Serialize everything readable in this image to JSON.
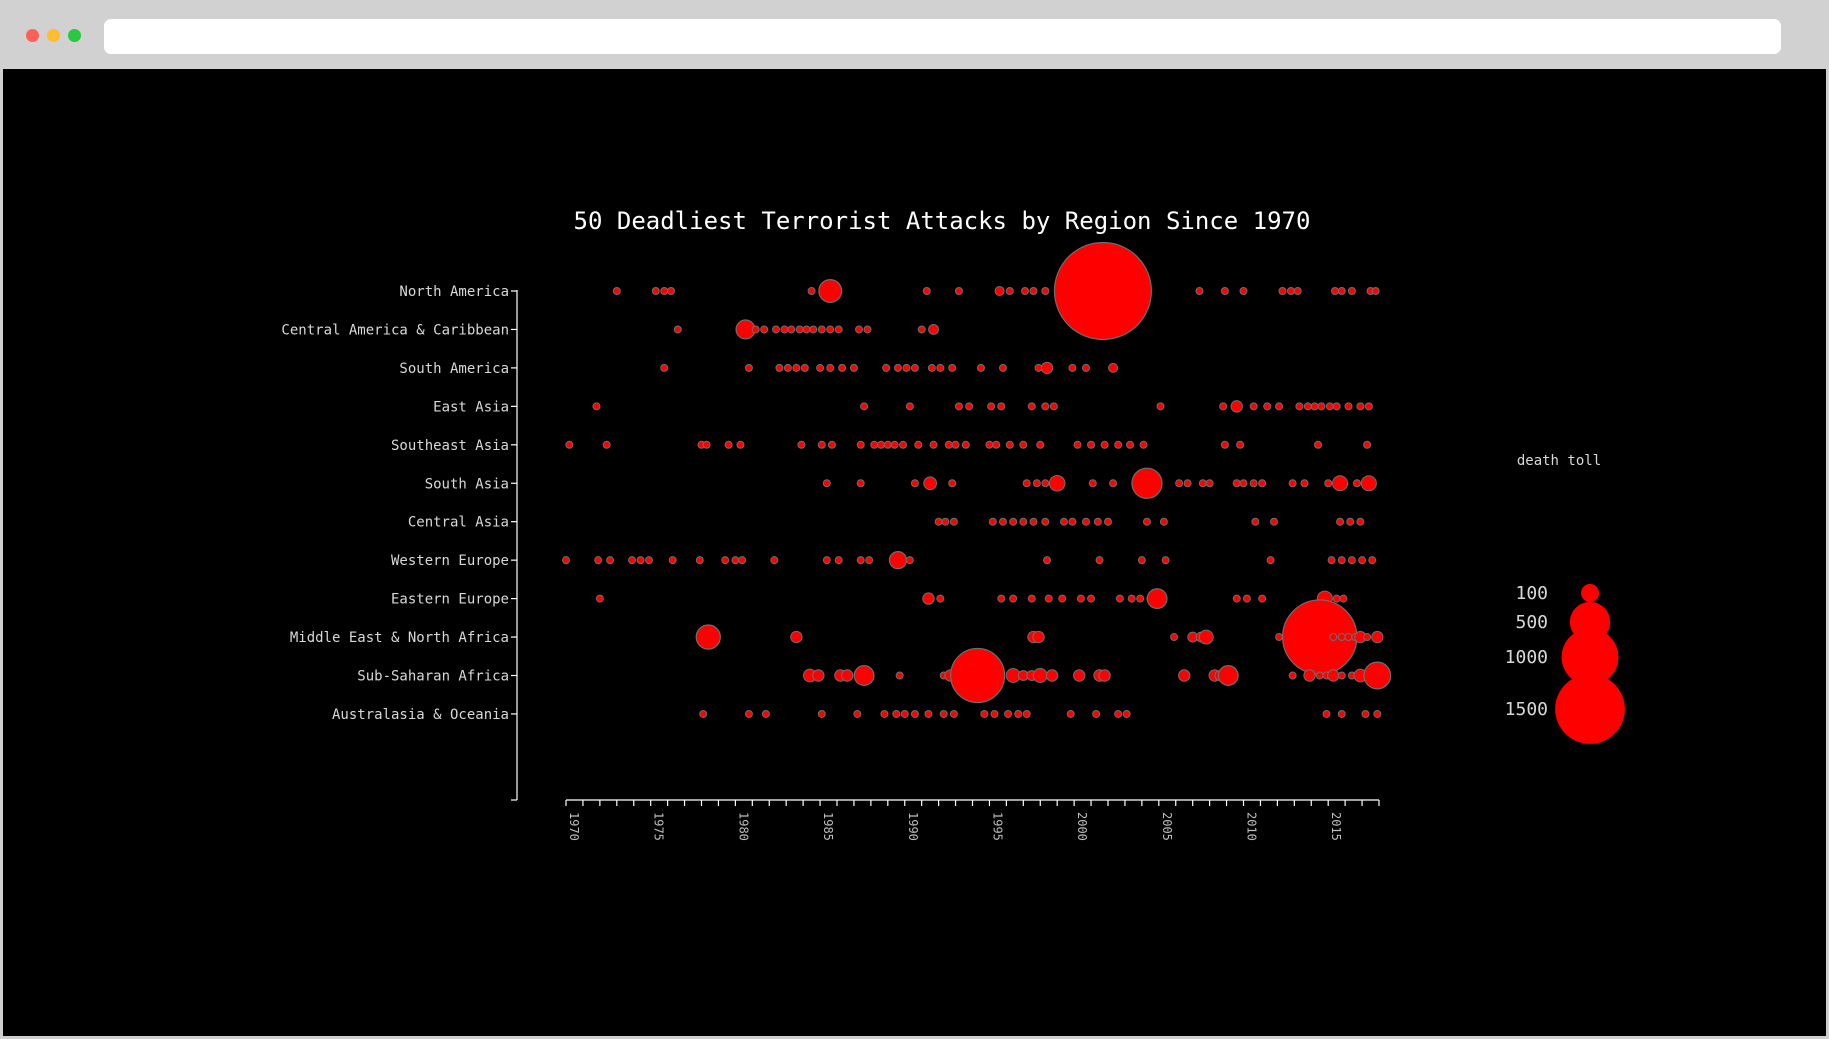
{
  "colors": {
    "background": "#000000",
    "bubble_fill": "#ff0000",
    "bubble_stroke": "#6e6e6e",
    "axis": "#ffffff"
  },
  "chart_data": {
    "type": "scatter",
    "title": "50 Deadliest Terrorist Attacks by Region Since 1970",
    "xlabel": "",
    "ylabel": "",
    "xlim": [
      1970,
      2018
    ],
    "x_ticks": [
      "1970",
      "1975",
      "1980",
      "1985",
      "1990",
      "1995",
      "2000",
      "2005",
      "2010",
      "2015"
    ],
    "categories": [
      "North America",
      "Central America & Caribbean",
      "South America",
      "East Asia",
      "Southeast Asia",
      "South Asia",
      "Central Asia",
      "Western Europe",
      "Eastern Europe",
      "Middle East & North Africa",
      "Sub-Saharan Africa",
      "Australasia & Oceania"
    ],
    "legend": {
      "title": "death toll",
      "entries": [
        {
          "label": "100",
          "value": 100
        },
        {
          "label": "500",
          "value": 500
        },
        {
          "label": "1000",
          "value": 1000
        },
        {
          "label": "1500",
          "value": 1500
        }
      ]
    },
    "series": [
      {
        "region": "North America",
        "points": [
          [
            1973.0,
            15
          ],
          [
            1975.3,
            15
          ],
          [
            1975.8,
            15
          ],
          [
            1976.2,
            15
          ],
          [
            1984.5,
            15
          ],
          [
            1985.6,
            160
          ],
          [
            1991.3,
            15
          ],
          [
            1993.2,
            15
          ],
          [
            1995.6,
            25
          ],
          [
            1996.2,
            15
          ],
          [
            1997.1,
            15
          ],
          [
            1997.6,
            15
          ],
          [
            1998.3,
            15
          ],
          [
            1999.5,
            15
          ],
          [
            2001.7,
            2900
          ],
          [
            2007.4,
            15
          ],
          [
            2008.9,
            15
          ],
          [
            2010.0,
            15
          ],
          [
            2012.3,
            15
          ],
          [
            2012.8,
            15
          ],
          [
            2013.2,
            15
          ],
          [
            2015.4,
            15
          ],
          [
            2015.8,
            15
          ],
          [
            2016.4,
            15
          ],
          [
            2017.5,
            15
          ],
          [
            2017.8,
            15
          ]
        ]
      },
      {
        "region": "Central America & Caribbean",
        "points": [
          [
            1976.6,
            15
          ],
          [
            1980.6,
            110
          ],
          [
            1981.2,
            15
          ],
          [
            1981.7,
            15
          ],
          [
            1982.4,
            15
          ],
          [
            1982.9,
            15
          ],
          [
            1983.3,
            15
          ],
          [
            1983.8,
            15
          ],
          [
            1984.2,
            15
          ],
          [
            1984.6,
            15
          ],
          [
            1985.1,
            15
          ],
          [
            1985.6,
            15
          ],
          [
            1986.1,
            15
          ],
          [
            1987.3,
            15
          ],
          [
            1987.8,
            15
          ],
          [
            1991.0,
            15
          ],
          [
            1991.7,
            30
          ]
        ]
      },
      {
        "region": "South America",
        "points": [
          [
            1975.8,
            15
          ],
          [
            1980.8,
            15
          ],
          [
            1982.6,
            15
          ],
          [
            1983.1,
            15
          ],
          [
            1983.6,
            15
          ],
          [
            1984.1,
            15
          ],
          [
            1985.0,
            15
          ],
          [
            1985.6,
            15
          ],
          [
            1986.3,
            15
          ],
          [
            1987.0,
            15
          ],
          [
            1988.9,
            15
          ],
          [
            1989.6,
            15
          ],
          [
            1990.1,
            15
          ],
          [
            1990.6,
            15
          ],
          [
            1991.6,
            15
          ],
          [
            1992.1,
            15
          ],
          [
            1992.8,
            15
          ],
          [
            1994.5,
            15
          ],
          [
            1995.8,
            15
          ],
          [
            1997.9,
            15
          ],
          [
            1998.4,
            40
          ],
          [
            1999.9,
            15
          ],
          [
            2000.7,
            15
          ],
          [
            2002.3,
            25
          ]
        ]
      },
      {
        "region": "East Asia",
        "points": [
          [
            1971.8,
            15
          ],
          [
            1987.6,
            15
          ],
          [
            1990.3,
            15
          ],
          [
            1993.2,
            15
          ],
          [
            1993.8,
            15
          ],
          [
            1995.1,
            15
          ],
          [
            1995.7,
            15
          ],
          [
            1997.5,
            15
          ],
          [
            1998.3,
            15
          ],
          [
            1998.8,
            15
          ],
          [
            2005.1,
            15
          ],
          [
            2008.8,
            15
          ],
          [
            2009.6,
            40
          ],
          [
            2010.6,
            15
          ],
          [
            2011.4,
            15
          ],
          [
            2012.1,
            15
          ],
          [
            2013.3,
            15
          ],
          [
            2013.8,
            15
          ],
          [
            2014.2,
            15
          ],
          [
            2014.6,
            15
          ],
          [
            2015.1,
            15
          ],
          [
            2015.5,
            15
          ],
          [
            2016.2,
            15
          ],
          [
            2016.9,
            15
          ],
          [
            2017.4,
            15
          ]
        ]
      },
      {
        "region": "Southeast Asia",
        "points": [
          [
            1970.2,
            15
          ],
          [
            1972.4,
            15
          ],
          [
            1978.0,
            15
          ],
          [
            1978.3,
            15
          ],
          [
            1979.6,
            15
          ],
          [
            1980.3,
            15
          ],
          [
            1983.9,
            15
          ],
          [
            1985.1,
            15
          ],
          [
            1985.7,
            15
          ],
          [
            1987.4,
            15
          ],
          [
            1988.2,
            15
          ],
          [
            1988.6,
            15
          ],
          [
            1989.0,
            15
          ],
          [
            1989.4,
            15
          ],
          [
            1989.9,
            15
          ],
          [
            1990.8,
            15
          ],
          [
            1991.7,
            15
          ],
          [
            1992.6,
            15
          ],
          [
            1993.0,
            15
          ],
          [
            1993.6,
            15
          ],
          [
            1995.0,
            15
          ],
          [
            1995.4,
            15
          ],
          [
            1996.2,
            15
          ],
          [
            1997.0,
            15
          ],
          [
            1998.0,
            15
          ],
          [
            2000.2,
            15
          ],
          [
            2001.0,
            15
          ],
          [
            2001.8,
            15
          ],
          [
            2002.6,
            15
          ],
          [
            2003.3,
            15
          ],
          [
            2004.1,
            15
          ],
          [
            2008.9,
            15
          ],
          [
            2009.8,
            15
          ],
          [
            2014.4,
            15
          ],
          [
            2017.3,
            15
          ]
        ]
      },
      {
        "region": "South Asia",
        "points": [
          [
            1985.4,
            15
          ],
          [
            1987.4,
            15
          ],
          [
            1990.6,
            15
          ],
          [
            1991.5,
            50
          ],
          [
            1992.8,
            15
          ],
          [
            1997.2,
            15
          ],
          [
            1997.8,
            15
          ],
          [
            1998.3,
            15
          ],
          [
            1999.0,
            75
          ],
          [
            2001.1,
            15
          ],
          [
            2002.3,
            15
          ],
          [
            2004.3,
            280
          ],
          [
            2006.2,
            15
          ],
          [
            2006.7,
            15
          ],
          [
            2007.6,
            15
          ],
          [
            2008.0,
            15
          ],
          [
            2009.6,
            15
          ],
          [
            2010.0,
            15
          ],
          [
            2010.6,
            15
          ],
          [
            2011.1,
            15
          ],
          [
            2012.9,
            15
          ],
          [
            2013.6,
            15
          ],
          [
            2015.0,
            15
          ],
          [
            2015.7,
            70
          ],
          [
            2016.7,
            15
          ],
          [
            2017.4,
            70
          ]
        ]
      },
      {
        "region": "Central Asia",
        "points": [
          [
            1992.0,
            15
          ],
          [
            1992.4,
            15
          ],
          [
            1992.9,
            15
          ],
          [
            1995.2,
            15
          ],
          [
            1995.8,
            15
          ],
          [
            1996.4,
            15
          ],
          [
            1997.0,
            15
          ],
          [
            1997.6,
            15
          ],
          [
            1998.3,
            15
          ],
          [
            1999.4,
            15
          ],
          [
            1999.9,
            15
          ],
          [
            2000.7,
            15
          ],
          [
            2001.4,
            15
          ],
          [
            2002.0,
            15
          ],
          [
            2004.3,
            15
          ],
          [
            2005.3,
            15
          ],
          [
            2010.7,
            15
          ],
          [
            2011.8,
            15
          ],
          [
            2015.7,
            15
          ],
          [
            2016.3,
            15
          ],
          [
            2016.9,
            15
          ]
        ]
      },
      {
        "region": "Western Europe",
        "points": [
          [
            1970.0,
            15
          ],
          [
            1971.9,
            15
          ],
          [
            1972.6,
            15
          ],
          [
            1973.9,
            15
          ],
          [
            1974.4,
            15
          ],
          [
            1974.9,
            15
          ],
          [
            1976.3,
            15
          ],
          [
            1977.9,
            15
          ],
          [
            1979.4,
            15
          ],
          [
            1980.0,
            15
          ],
          [
            1980.4,
            15
          ],
          [
            1982.3,
            15
          ],
          [
            1985.4,
            15
          ],
          [
            1986.1,
            15
          ],
          [
            1987.4,
            15
          ],
          [
            1987.9,
            15
          ],
          [
            1989.6,
            90
          ],
          [
            1990.3,
            15
          ],
          [
            1998.4,
            15
          ],
          [
            2001.5,
            15
          ],
          [
            2004.0,
            15
          ],
          [
            2005.4,
            15
          ],
          [
            2011.6,
            15
          ],
          [
            2015.2,
            15
          ],
          [
            2015.8,
            15
          ],
          [
            2016.4,
            15
          ],
          [
            2017.0,
            15
          ],
          [
            2017.6,
            15
          ]
        ]
      },
      {
        "region": "Eastern Europe",
        "points": [
          [
            1972.0,
            15
          ],
          [
            1991.4,
            40
          ],
          [
            1992.1,
            15
          ],
          [
            1995.7,
            15
          ],
          [
            1996.4,
            15
          ],
          [
            1997.5,
            15
          ],
          [
            1998.5,
            15
          ],
          [
            1999.3,
            15
          ],
          [
            2000.4,
            15
          ],
          [
            2001.0,
            15
          ],
          [
            2002.7,
            15
          ],
          [
            2003.4,
            15
          ],
          [
            2003.9,
            15
          ],
          [
            2004.5,
            15
          ],
          [
            2004.8,
            15
          ],
          [
            2004.9,
            120
          ],
          [
            2009.6,
            15
          ],
          [
            2010.2,
            15
          ],
          [
            2011.1,
            15
          ],
          [
            2014.8,
            70
          ],
          [
            2015.5,
            15
          ],
          [
            2015.9,
            15
          ]
        ]
      },
      {
        "region": "Middle East & North Africa",
        "points": [
          [
            1978.4,
            180
          ],
          [
            1983.6,
            40
          ],
          [
            1997.6,
            40
          ],
          [
            1997.9,
            40
          ],
          [
            2005.9,
            15
          ],
          [
            2007.0,
            30
          ],
          [
            2007.5,
            30
          ],
          [
            2007.8,
            60
          ],
          [
            2012.1,
            15
          ],
          [
            2014.5,
            1700
          ],
          [
            2015.3,
            15
          ],
          [
            2015.8,
            15
          ],
          [
            2016.2,
            15
          ],
          [
            2016.6,
            15
          ],
          [
            2016.9,
            40
          ],
          [
            2017.3,
            15
          ],
          [
            2017.9,
            40
          ]
        ]
      },
      {
        "region": "Sub-Saharan Africa",
        "points": [
          [
            1984.4,
            50
          ],
          [
            1984.9,
            40
          ],
          [
            1986.2,
            40
          ],
          [
            1986.6,
            40
          ],
          [
            1987.6,
            120
          ],
          [
            1989.7,
            15
          ],
          [
            1992.3,
            15
          ],
          [
            1992.7,
            40
          ],
          [
            1994.3,
            900
          ],
          [
            1996.4,
            60
          ],
          [
            1997.0,
            30
          ],
          [
            1997.5,
            30
          ],
          [
            1998.0,
            60
          ],
          [
            1998.7,
            40
          ],
          [
            2000.3,
            40
          ],
          [
            2001.5,
            40
          ],
          [
            2001.8,
            40
          ],
          [
            2006.5,
            40
          ],
          [
            2008.3,
            40
          ],
          [
            2008.6,
            30
          ],
          [
            2009.1,
            120
          ],
          [
            2012.9,
            15
          ],
          [
            2013.9,
            40
          ],
          [
            2014.5,
            15
          ],
          [
            2014.9,
            15
          ],
          [
            2015.3,
            40
          ],
          [
            2015.8,
            15
          ],
          [
            2016.4,
            15
          ],
          [
            2016.9,
            50
          ],
          [
            2017.9,
            220
          ]
        ]
      },
      {
        "region": "Australasia & Oceania",
        "points": [
          [
            1978.1,
            15
          ],
          [
            1980.8,
            15
          ],
          [
            1981.8,
            15
          ],
          [
            1985.1,
            15
          ],
          [
            1987.2,
            15
          ],
          [
            1988.8,
            15
          ],
          [
            1989.5,
            15
          ],
          [
            1990.0,
            15
          ],
          [
            1990.6,
            15
          ],
          [
            1991.4,
            15
          ],
          [
            1992.3,
            15
          ],
          [
            1992.9,
            15
          ],
          [
            1994.7,
            15
          ],
          [
            1995.3,
            15
          ],
          [
            1996.1,
            15
          ],
          [
            1996.7,
            15
          ],
          [
            1997.2,
            15
          ],
          [
            1999.8,
            15
          ],
          [
            2001.3,
            15
          ],
          [
            2002.6,
            15
          ],
          [
            2003.1,
            15
          ],
          [
            2014.9,
            15
          ],
          [
            2015.8,
            15
          ],
          [
            2017.2,
            15
          ],
          [
            2017.9,
            15
          ]
        ]
      }
    ]
  }
}
